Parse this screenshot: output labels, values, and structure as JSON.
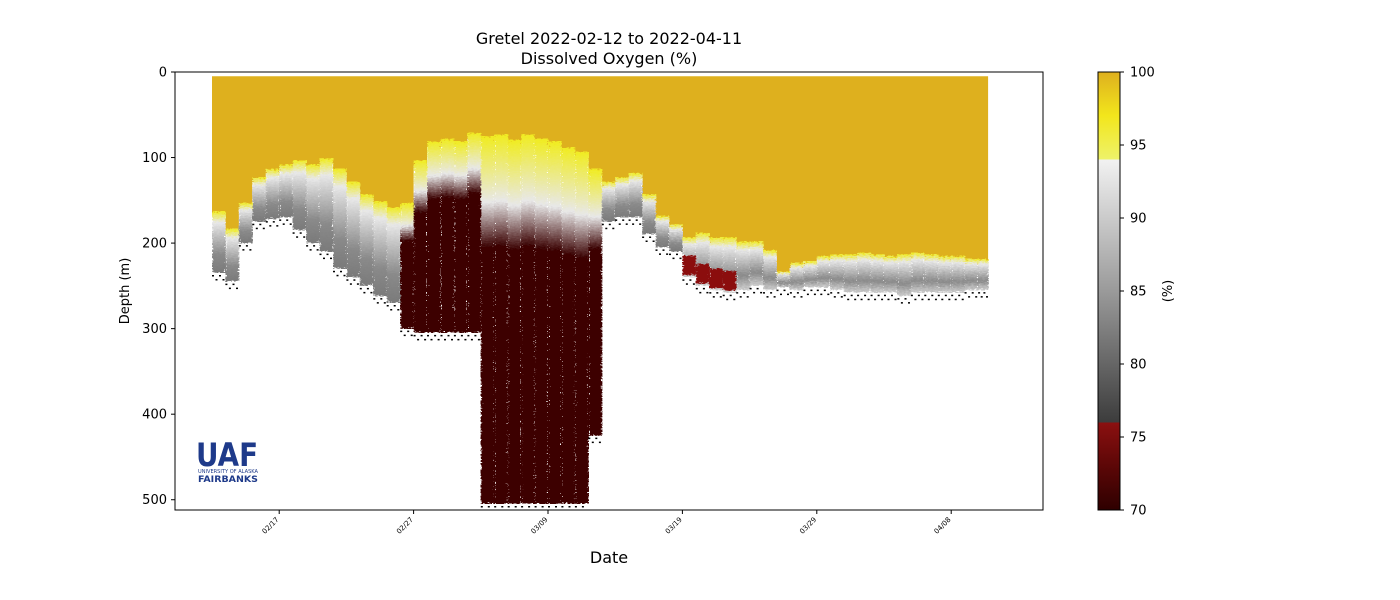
{
  "chart_data": {
    "type": "heatmap",
    "title": "Gretel 2022-02-12 to 2022-04-11",
    "subtitle": "Dissolved Oxygen (%)",
    "xlabel": "Date",
    "ylabel": "Depth (m)",
    "x_ticks": [
      "02/17",
      "02/27",
      "03/09",
      "03/19",
      "03/29",
      "04/08"
    ],
    "y_ticks": [
      "0",
      "100",
      "200",
      "300",
      "400",
      "500"
    ],
    "ylim": [
      512,
      0
    ],
    "colorbar": {
      "label": "(%)",
      "range": [
        70,
        100
      ],
      "ticks": [
        "70",
        "75",
        "80",
        "85",
        "90",
        "95",
        "100"
      ],
      "segments": [
        {
          "from": 70,
          "to": 76,
          "colors": [
            "#2e0000",
            "#5c0707",
            "#8b1010"
          ]
        },
        {
          "from": 76,
          "to": 94,
          "colors": [
            "#3c3c3c",
            "#9a9a9a",
            "#f2f2f2"
          ]
        },
        {
          "from": 94,
          "to": 100,
          "colors": [
            "#eef26a",
            "#f2e61c",
            "#deb01e"
          ]
        }
      ],
      "accent_colors": {
        "saturated": "#deb01e",
        "transition": "#f0ec20",
        "anoxic": "#3d0505"
      }
    },
    "series": [
      {
        "x": [
          "02-12",
          "02-13",
          "02-14",
          "02-15",
          "02-16",
          "02-17",
          "02-18",
          "02-19",
          "02-20",
          "02-21",
          "02-22",
          "02-23",
          "02-24",
          "02-25",
          "02-26",
          "02-27",
          "02-28",
          "03-01",
          "03-02",
          "03-03",
          "03-04",
          "03-05",
          "03-06",
          "03-07",
          "03-08",
          "03-09",
          "03-10",
          "03-11",
          "03-12",
          "03-13",
          "03-14",
          "03-15",
          "03-16",
          "03-17",
          "03-18",
          "03-19",
          "03-20",
          "03-21",
          "03-22",
          "03-23",
          "03-24",
          "03-25",
          "03-26",
          "03-27",
          "03-28",
          "03-29",
          "03-30",
          "03-31",
          "04-01",
          "04-02",
          "04-03",
          "04-04",
          "04-05",
          "04-06",
          "04-07",
          "04-08",
          "04-09",
          "04-10"
        ],
        "saturated_bottom_m": [
          170,
          190,
          160,
          130,
          120,
          115,
          110,
          115,
          108,
          120,
          135,
          150,
          158,
          165,
          160,
          110,
          88,
          85,
          88,
          78,
          82,
          80,
          86,
          80,
          85,
          88,
          95,
          100,
          120,
          135,
          130,
          125,
          150,
          175,
          185,
          200,
          195,
          200,
          200,
          205,
          205,
          215,
          240,
          230,
          228,
          222,
          220,
          220,
          218,
          220,
          222,
          220,
          218,
          220,
          222,
          222,
          225,
          225
        ],
        "deep_top_m": [
          235,
          245,
          200,
          175,
          172,
          170,
          185,
          200,
          210,
          230,
          240,
          250,
          262,
          270,
          300,
          305,
          305,
          305,
          305,
          305,
          505,
          505,
          505,
          505,
          505,
          505,
          505,
          505,
          425,
          175,
          170,
          170,
          190,
          205,
          210,
          240,
          250,
          255,
          258,
          255,
          250,
          255,
          252,
          255,
          252,
          252,
          255,
          258,
          258,
          258,
          258,
          262,
          258,
          258,
          258,
          258,
          255,
          255
        ]
      }
    ]
  },
  "logo": {
    "letters": "UAF",
    "line1": "UNIVERSITY OF ALASKA",
    "line2": "FAIRBANKS",
    "color": "#1e3a8a"
  }
}
